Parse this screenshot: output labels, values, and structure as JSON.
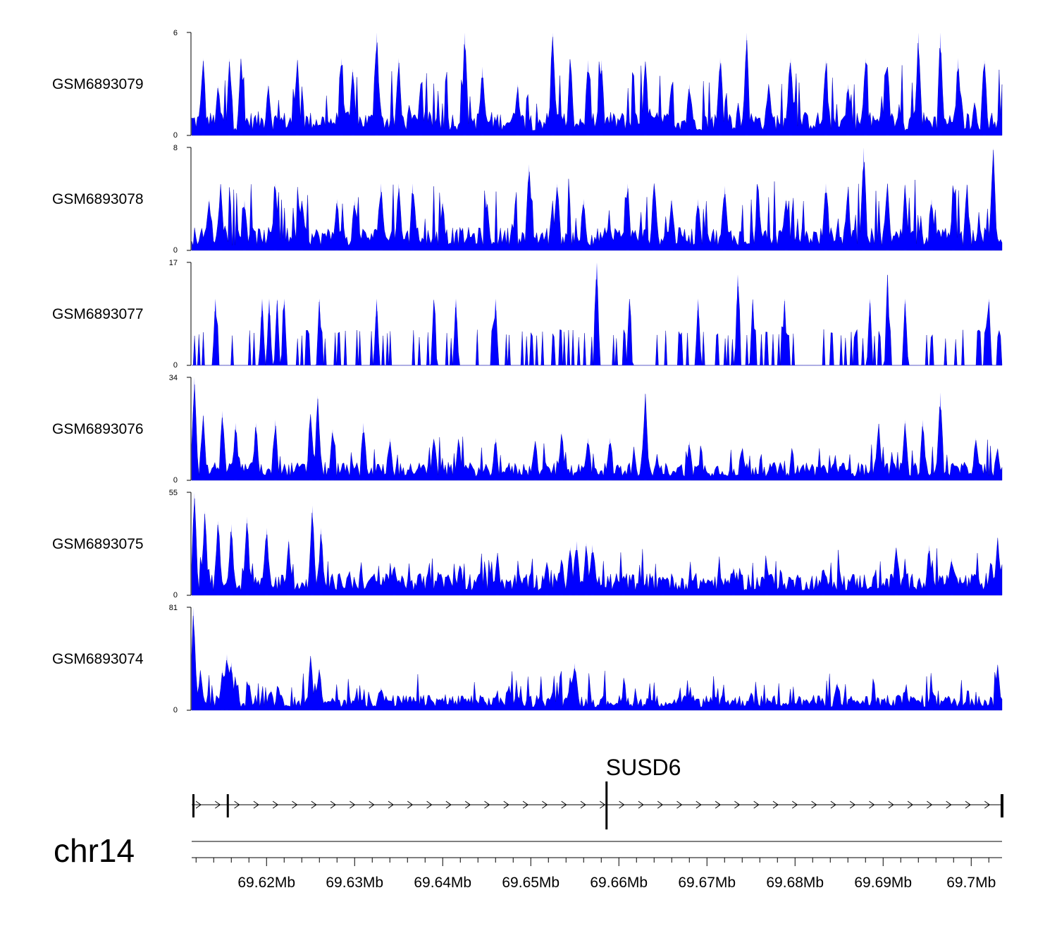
{
  "chart_data": {
    "type": "area",
    "color": "#0000ff",
    "x_range_mb": [
      69.6115,
      69.7035
    ],
    "tracks": [
      {
        "name": "GSM6893079",
        "ylim": [
          0,
          6
        ],
        "y_ticks": [
          "6",
          "0"
        ],
        "baseline": 0.7,
        "peaks": [
          [
            69.6128,
            4.5
          ],
          [
            69.6145,
            2.9
          ],
          [
            69.6158,
            4.5
          ],
          [
            69.6171,
            4.5
          ],
          [
            69.6202,
            3.0
          ],
          [
            69.6235,
            4.5
          ],
          [
            69.6285,
            4.5
          ],
          [
            69.6298,
            3.9
          ],
          [
            69.6325,
            6.0
          ],
          [
            69.635,
            4.5
          ],
          [
            69.6375,
            3.0
          ],
          [
            69.6425,
            6.0
          ],
          [
            69.6445,
            4.0
          ],
          [
            69.6485,
            3.0
          ],
          [
            69.6525,
            6.0
          ],
          [
            69.6545,
            4.5
          ],
          [
            69.6565,
            4.4
          ],
          [
            69.658,
            4.4
          ],
          [
            69.663,
            4.4
          ],
          [
            69.668,
            3.0
          ],
          [
            69.6715,
            4.5
          ],
          [
            69.6745,
            6.0
          ],
          [
            69.677,
            3.0
          ],
          [
            69.6795,
            4.5
          ],
          [
            69.6835,
            4.4
          ],
          [
            69.686,
            3.0
          ],
          [
            69.688,
            4.5
          ],
          [
            69.6905,
            4.0
          ],
          [
            69.694,
            6.0
          ],
          [
            69.6965,
            6.0
          ],
          [
            69.6985,
            4.5
          ],
          [
            69.7015,
            4.4
          ]
        ]
      },
      {
        "name": "GSM6893078",
        "ylim": [
          0,
          8
        ],
        "y_ticks": [
          "8",
          "0"
        ],
        "baseline": 0.9,
        "peaks": [
          [
            69.6135,
            4.0
          ],
          [
            69.6148,
            5.2
          ],
          [
            69.6175,
            3.9
          ],
          [
            69.621,
            5.2
          ],
          [
            69.624,
            3.9
          ],
          [
            69.628,
            4.0
          ],
          [
            69.63,
            3.9
          ],
          [
            69.633,
            5.2
          ],
          [
            69.635,
            5.2
          ],
          [
            69.6366,
            5.2
          ],
          [
            69.64,
            3.8
          ],
          [
            69.645,
            4.0
          ],
          [
            69.6498,
            6.7
          ],
          [
            69.653,
            5.2
          ],
          [
            69.656,
            4.0
          ],
          [
            69.661,
            5.2
          ],
          [
            69.664,
            5.2
          ],
          [
            69.666,
            4.0
          ],
          [
            69.669,
            4.0
          ],
          [
            69.672,
            5.0
          ],
          [
            69.6758,
            5.2
          ],
          [
            69.679,
            4.0
          ],
          [
            69.6835,
            5.2
          ],
          [
            69.686,
            3.9
          ],
          [
            69.6878,
            8.0
          ],
          [
            69.6905,
            5.2
          ],
          [
            69.6925,
            5.2
          ],
          [
            69.6955,
            4.0
          ],
          [
            69.698,
            5.0
          ],
          [
            69.6995,
            5.2
          ],
          [
            69.7025,
            8.0
          ]
        ]
      },
      {
        "name": "GSM6893077",
        "ylim": [
          0,
          17
        ],
        "y_ticks": [
          "17",
          "0"
        ],
        "baseline": 0.0,
        "peaks": [
          [
            69.6142,
            11.0
          ],
          [
            69.6195,
            11.0
          ],
          [
            69.6203,
            11.0
          ],
          [
            69.6212,
            11.0
          ],
          [
            69.622,
            11.0
          ],
          [
            69.626,
            11.0
          ],
          [
            69.6325,
            11.0
          ],
          [
            69.639,
            11.0
          ],
          [
            69.6415,
            11.0
          ],
          [
            69.646,
            11.0
          ],
          [
            69.6575,
            17.0
          ],
          [
            69.6612,
            11.0
          ],
          [
            69.669,
            11.0
          ],
          [
            69.6735,
            15.0
          ],
          [
            69.6752,
            11.0
          ],
          [
            69.6788,
            11.0
          ],
          [
            69.6885,
            11.0
          ],
          [
            69.6905,
            15.0
          ],
          [
            69.6925,
            11.0
          ],
          [
            69.702,
            11.0
          ]
        ]
      },
      {
        "name": "GSM6893076",
        "ylim": [
          0,
          34
        ],
        "y_ticks": [
          "34",
          "0"
        ],
        "baseline": 3.0,
        "peaks": [
          [
            69.6118,
            34.0
          ],
          [
            69.6128,
            22.0
          ],
          [
            69.615,
            23.0
          ],
          [
            69.6165,
            19.0
          ],
          [
            69.6188,
            19.0
          ],
          [
            69.621,
            20.0
          ],
          [
            69.625,
            22.0
          ],
          [
            69.6258,
            28.0
          ],
          [
            69.6275,
            17.0
          ],
          [
            69.631,
            19.0
          ],
          [
            69.634,
            14.0
          ],
          [
            69.639,
            14.0
          ],
          [
            69.6418,
            14.0
          ],
          [
            69.646,
            14.0
          ],
          [
            69.6505,
            13.0
          ],
          [
            69.6535,
            16.0
          ],
          [
            69.6565,
            14.0
          ],
          [
            69.659,
            14.0
          ],
          [
            69.663,
            29.0
          ],
          [
            69.668,
            13.0
          ],
          [
            69.674,
            11.0
          ],
          [
            69.6895,
            19.0
          ],
          [
            69.6925,
            20.0
          ],
          [
            69.6945,
            20.0
          ],
          [
            69.6965,
            29.0
          ],
          [
            69.7005,
            14.0
          ],
          [
            69.703,
            10.0
          ]
        ]
      },
      {
        "name": "GSM6893075",
        "ylim": [
          0,
          55
        ],
        "y_ticks": [
          "55",
          "0"
        ],
        "baseline": 6.0,
        "peaks": [
          [
            69.6118,
            55.0
          ],
          [
            69.613,
            45.0
          ],
          [
            69.6145,
            40.0
          ],
          [
            69.616,
            38.0
          ],
          [
            69.6178,
            42.0
          ],
          [
            69.62,
            36.0
          ],
          [
            69.6225,
            30.0
          ],
          [
            69.6252,
            48.0
          ],
          [
            69.6262,
            36.0
          ],
          [
            69.6345,
            16.0
          ],
          [
            69.642,
            16.0
          ],
          [
            69.6462,
            18.0
          ],
          [
            69.6518,
            18.0
          ],
          [
            69.6535,
            19.0
          ],
          [
            69.6545,
            26.0
          ],
          [
            69.6552,
            29.0
          ],
          [
            69.6563,
            28.0
          ],
          [
            69.657,
            27.0
          ],
          [
            69.6605,
            9.0
          ],
          [
            69.665,
            10.0
          ],
          [
            69.673,
            15.0
          ],
          [
            69.6768,
            16.0
          ],
          [
            69.6832,
            14.0
          ],
          [
            69.6915,
            26.0
          ],
          [
            69.6952,
            27.0
          ],
          [
            69.6978,
            20.0
          ],
          [
            69.703,
            31.0
          ]
        ]
      },
      {
        "name": "GSM6893074",
        "ylim": [
          0,
          81
        ],
        "y_ticks": [
          "81",
          "0"
        ],
        "baseline": 6.0,
        "peaks": [
          [
            69.6117,
            81.0
          ],
          [
            69.6125,
            32.0
          ],
          [
            69.615,
            32.0
          ],
          [
            69.6155,
            44.0
          ],
          [
            69.616,
            38.0
          ],
          [
            69.618,
            22.0
          ],
          [
            69.6205,
            16.0
          ],
          [
            69.625,
            43.0
          ],
          [
            69.626,
            33.0
          ],
          [
            69.633,
            18.0
          ],
          [
            69.6475,
            20.0
          ],
          [
            69.6525,
            15.0
          ],
          [
            69.6545,
            27.0
          ],
          [
            69.655,
            37.0
          ],
          [
            69.6605,
            8.0
          ],
          [
            69.67,
            8.0
          ],
          [
            69.675,
            14.0
          ],
          [
            69.6848,
            22.0
          ],
          [
            69.6925,
            15.0
          ],
          [
            69.6955,
            17.0
          ],
          [
            69.703,
            36.0
          ]
        ]
      }
    ],
    "gene": {
      "name": "SUSD6",
      "strand": "+",
      "exons_mb": [
        69.6117,
        69.6156,
        69.6586,
        69.7035
      ]
    },
    "chromosome": "chr14",
    "x_ticks": [
      "69.62Mb",
      "69.63Mb",
      "69.64Mb",
      "69.65Mb",
      "69.66Mb",
      "69.67Mb",
      "69.68Mb",
      "69.69Mb",
      "69.7Mb"
    ],
    "x_tick_values_mb": [
      69.62,
      69.63,
      69.64,
      69.65,
      69.66,
      69.67,
      69.68,
      69.69,
      69.7
    ]
  }
}
